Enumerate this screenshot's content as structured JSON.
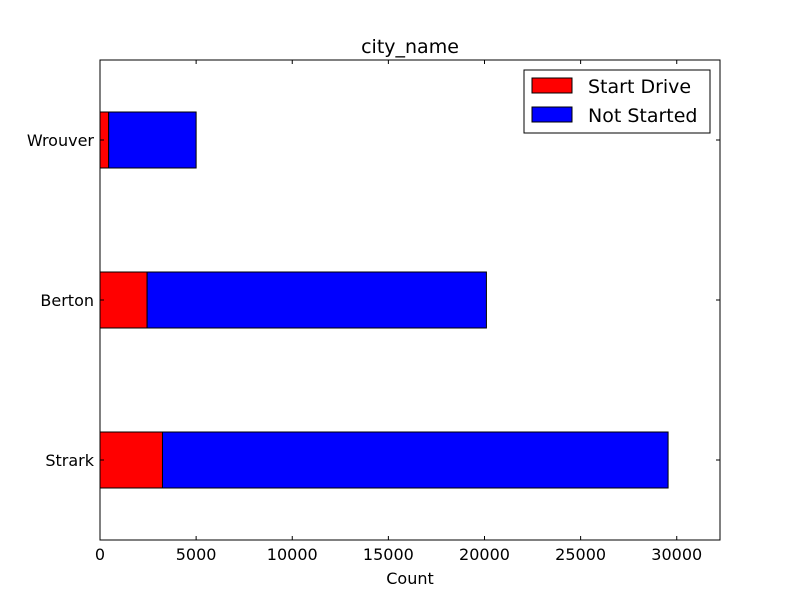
{
  "chart_data": {
    "type": "bar",
    "orientation": "horizontal",
    "stacked": true,
    "title": "city_name",
    "xlabel": "Count",
    "ylabel": "",
    "categories": [
      "Strark",
      "Berton",
      "Wrouver"
    ],
    "series": [
      {
        "name": "Start Drive",
        "color": "#ff0000",
        "values": [
          3250,
          2450,
          450
        ]
      },
      {
        "name": "Not Started",
        "color": "#0000ff",
        "values": [
          26300,
          17650,
          4550
        ]
      }
    ],
    "xlim": [
      0,
      32250
    ],
    "xticks": [
      0,
      5000,
      10000,
      15000,
      20000,
      25000,
      30000
    ],
    "xtick_labels": [
      "0",
      "5000",
      "10000",
      "15000",
      "20000",
      "25000",
      "30000"
    ],
    "grid": false,
    "legend_position": "top-right"
  }
}
